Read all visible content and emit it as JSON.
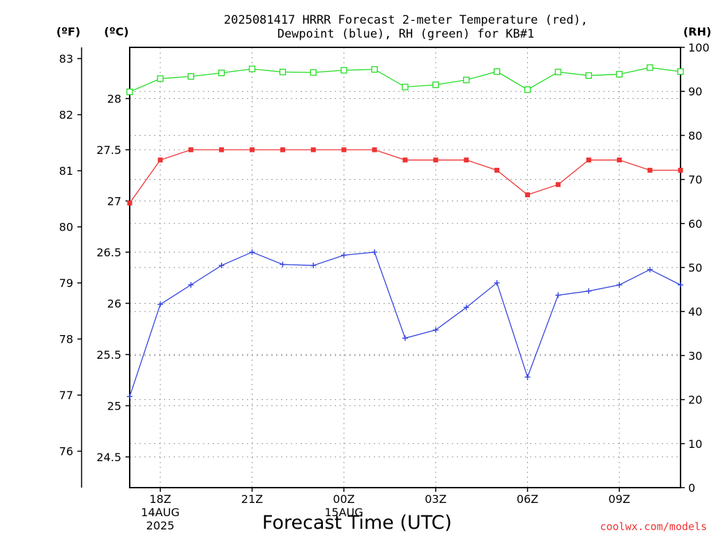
{
  "chart_data": {
    "type": "line",
    "title": [
      "2025081417 HRRR Forecast 2-meter Temperature (red),",
      "Dewpoint (blue), RH (green) for KB#1"
    ],
    "xlabel": "Forecast Time (UTC)",
    "credit": "coolwx.com/models",
    "axes": {
      "fahrenheit": {
        "unit_label": "(ºF)",
        "range": [
          75.35,
          83.2
        ],
        "ticks": [
          76,
          77,
          78,
          79,
          80,
          81,
          82,
          83
        ]
      },
      "celsius": {
        "unit_label": "(ºC)",
        "range": [
          24.2,
          28.5
        ],
        "ticks": [
          24.5,
          25,
          25.5,
          26,
          26.5,
          27,
          27.5,
          28
        ],
        "tick_labels": [
          "24.5",
          "25",
          "25.5",
          "26",
          "26.5",
          "27",
          "27.5",
          "28"
        ]
      },
      "rh": {
        "unit_label": "(RH)",
        "range": [
          0,
          100
        ],
        "ticks": [
          0,
          10,
          20,
          30,
          40,
          50,
          60,
          70,
          80,
          90,
          100
        ]
      }
    },
    "x_range": [
      17,
      35
    ],
    "x_ticks": [
      {
        "hour": 18,
        "label": [
          "18Z",
          "14AUG",
          "2025"
        ]
      },
      {
        "hour": 21,
        "label": [
          "21Z"
        ]
      },
      {
        "hour": 24,
        "label": [
          "00Z",
          "15AUG"
        ]
      },
      {
        "hour": 27,
        "label": [
          "03Z"
        ]
      },
      {
        "hour": 30,
        "label": [
          "06Z"
        ]
      },
      {
        "hour": 33,
        "label": [
          "09Z"
        ]
      }
    ],
    "grid": true,
    "x_hours": [
      17,
      18,
      19,
      20,
      21,
      22,
      23,
      24,
      25,
      26,
      27,
      28,
      29,
      30,
      31,
      32,
      33,
      34,
      35
    ],
    "series": [
      {
        "name": "Temperature",
        "axis": "celsius",
        "color": "#ee3333",
        "marker": "filled-square",
        "values": [
          26.98,
          27.4,
          27.5,
          27.5,
          27.5,
          27.5,
          27.5,
          27.5,
          27.5,
          27.4,
          27.4,
          27.4,
          27.3,
          27.06,
          27.16,
          27.4,
          27.4,
          27.3,
          27.3
        ]
      },
      {
        "name": "Dewpoint",
        "axis": "celsius",
        "color": "#3344dd",
        "marker": "plus",
        "values": [
          25.09,
          25.99,
          26.18,
          26.37,
          26.5,
          26.38,
          26.37,
          26.47,
          26.5,
          25.66,
          25.74,
          25.96,
          26.2,
          25.28,
          26.08,
          26.12,
          26.18,
          26.33,
          26.18
        ]
      },
      {
        "name": "RH",
        "axis": "rh",
        "color": "#22dd22",
        "marker": "open-square",
        "values": [
          89.9,
          92.9,
          93.4,
          94.2,
          95.1,
          94.4,
          94.3,
          94.8,
          95.0,
          91.0,
          91.5,
          92.6,
          94.5,
          90.4,
          94.4,
          93.6,
          93.9,
          95.4,
          94.5
        ]
      }
    ]
  }
}
